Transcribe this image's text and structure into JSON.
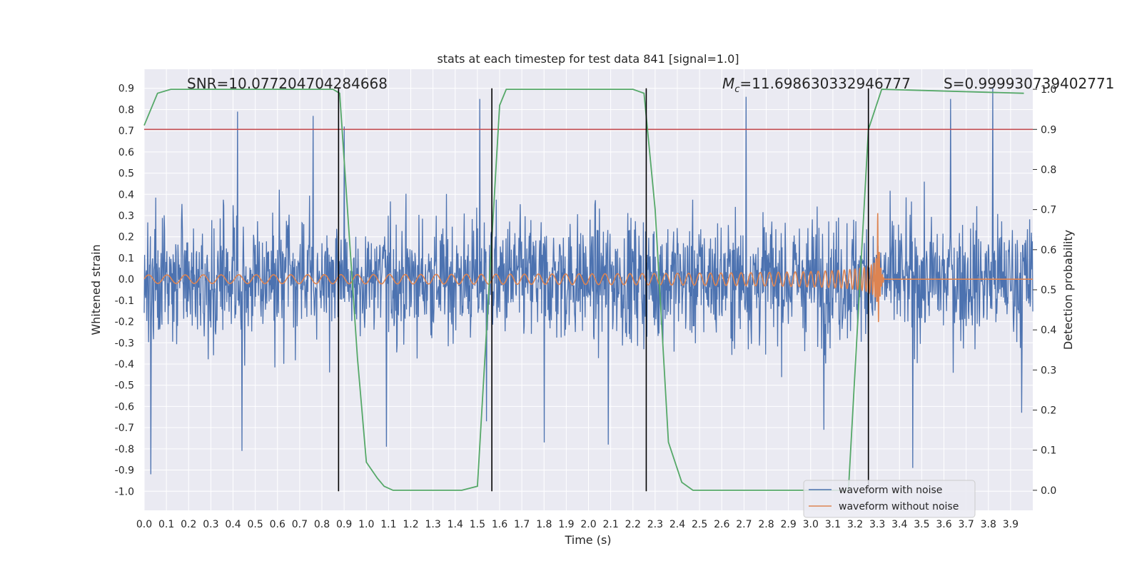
{
  "chart_data": {
    "type": "line",
    "title": "stats at each timestep for test data 841 [signal=1.0]",
    "xlabel": "Time (s)",
    "ylabel": "Whitened strain",
    "y2label": "Detection probability",
    "xlim": [
      0.0,
      4.0
    ],
    "ylim": [
      -1.09,
      0.99
    ],
    "y2lim": [
      -0.05,
      1.05
    ],
    "xticks": [
      "0.0",
      "0.1",
      "0.2",
      "0.3",
      "0.4",
      "0.5",
      "0.6",
      "0.7",
      "0.8",
      "0.9",
      "1.0",
      "1.1",
      "1.2",
      "1.3",
      "1.4",
      "1.5",
      "1.6",
      "1.7",
      "1.8",
      "1.9",
      "2.0",
      "2.1",
      "2.2",
      "2.3",
      "2.4",
      "2.5",
      "2.6",
      "2.7",
      "2.8",
      "2.9",
      "3.0",
      "3.1",
      "3.2",
      "3.3",
      "3.4",
      "3.5",
      "3.6",
      "3.7",
      "3.8",
      "3.9"
    ],
    "yticks": [
      "0.9",
      "0.8",
      "0.7",
      "0.6",
      "0.5",
      "0.4",
      "0.3",
      "0.2",
      "0.1",
      "0.0",
      "-0.1",
      "-0.2",
      "-0.3",
      "-0.4",
      "-0.5",
      "-0.6",
      "-0.7",
      "-0.8",
      "-0.9",
      "-1.0"
    ],
    "y2ticks": [
      "1.0",
      "0.9",
      "0.8",
      "0.7",
      "0.6",
      "0.5",
      "0.4",
      "0.3",
      "0.2",
      "0.1",
      "0.0"
    ],
    "annotations": {
      "snr": "SNR=10.077204704284668",
      "mc": "Mc=11.698630332946777",
      "mc_symbol": "M",
      "mc_sub": "c",
      "mc_value": "=11.698630332946777",
      "s": "S=0.999930739402771"
    },
    "threshold": {
      "value": 0.9,
      "axis": "y2",
      "color": "#c44e52"
    },
    "vlines": {
      "x": [
        0.875,
        1.565,
        2.26,
        3.26
      ],
      "color": "#000000"
    },
    "legend": {
      "position": "lower-right",
      "entries": [
        "waveform with noise",
        "waveform without noise"
      ]
    },
    "series": [
      {
        "name": "waveform with noise",
        "color": "#4c72b0",
        "kind": "noise",
        "envelope": 0.45,
        "outlier_peaks": [
          [
            0.03,
            -0.92
          ],
          [
            0.42,
            0.79
          ],
          [
            0.44,
            -0.81
          ],
          [
            0.76,
            0.77
          ],
          [
            0.9,
            0.72
          ],
          [
            1.09,
            -0.79
          ],
          [
            1.51,
            0.85
          ],
          [
            1.54,
            -0.67
          ],
          [
            1.8,
            -0.77
          ],
          [
            2.09,
            -0.78
          ],
          [
            2.71,
            0.86
          ],
          [
            3.06,
            -0.71
          ],
          [
            3.46,
            -0.89
          ],
          [
            3.63,
            0.85
          ],
          [
            3.82,
            0.9
          ],
          [
            3.95,
            -0.63
          ]
        ]
      },
      {
        "name": "waveform without noise",
        "color": "#dd8452",
        "kind": "chirp",
        "t_merge": 3.3,
        "amplitude_start": 0.02,
        "amplitude_peak": 0.4,
        "freq_start_hz": 12,
        "freq_merge_hz": 150
      },
      {
        "name": "detection probability",
        "color": "#55a868",
        "axis": "y2",
        "x": [
          0.0,
          0.06,
          0.12,
          0.2,
          0.35,
          0.5,
          0.7,
          0.85,
          0.88,
          0.96,
          1.0,
          1.05,
          1.08,
          1.12,
          1.2,
          1.43,
          1.5,
          1.6,
          1.63,
          2.2,
          2.25,
          2.3,
          2.36,
          2.42,
          2.47,
          3.17,
          3.26,
          3.32,
          3.96
        ],
        "y": [
          0.91,
          0.99,
          1.0,
          1.0,
          1.0,
          1.0,
          1.0,
          1.0,
          0.99,
          0.33,
          0.07,
          0.03,
          0.01,
          0.0,
          0.0,
          0.0,
          0.01,
          0.96,
          1.0,
          1.0,
          0.99,
          0.7,
          0.12,
          0.02,
          0.0,
          0.0,
          0.9,
          1.0,
          0.99
        ]
      }
    ]
  }
}
